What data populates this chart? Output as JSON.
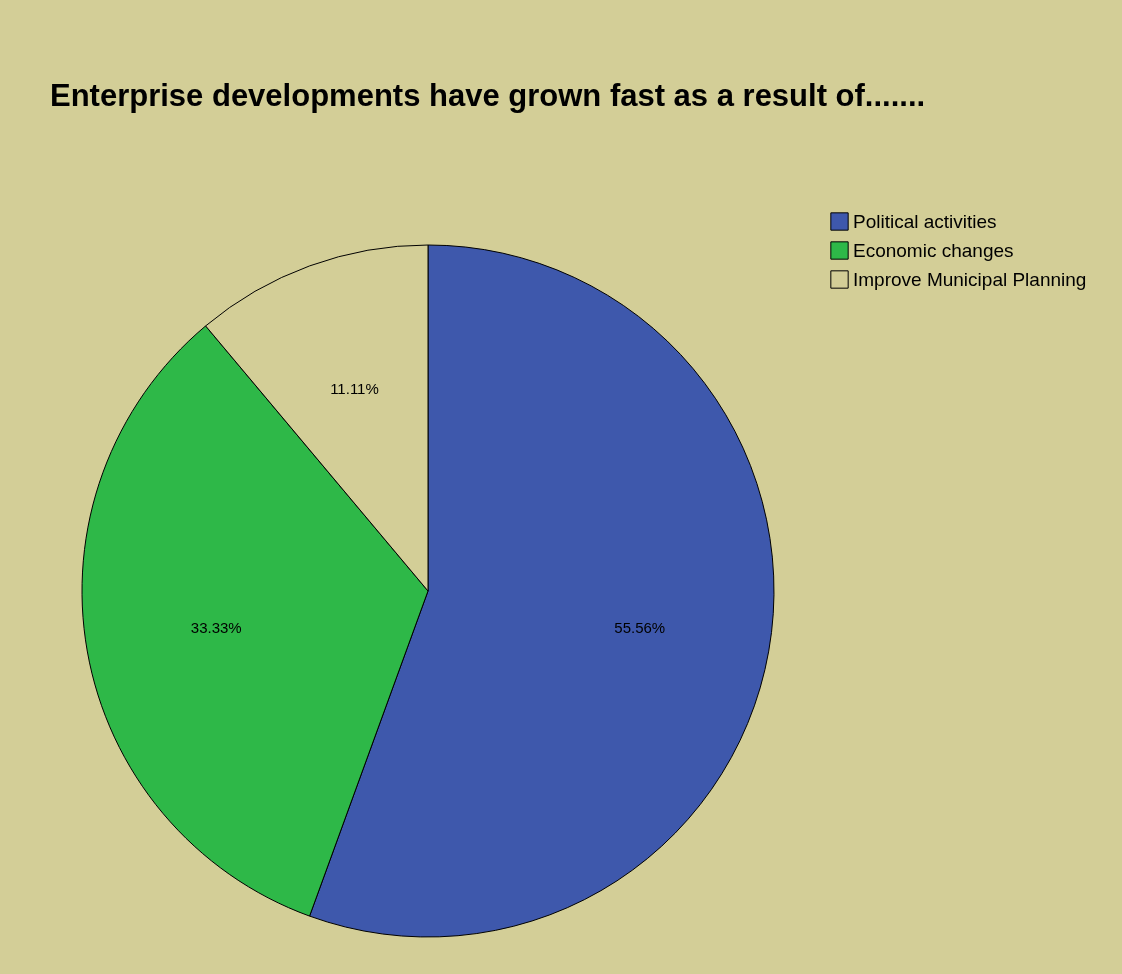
{
  "chart_data": {
    "type": "pie",
    "title": "Enterprise developments have grown fast as a result of.......",
    "categories": [
      "Political activities",
      "Economic changes",
      "Improve Municipal Planning"
    ],
    "values": [
      55.56,
      33.33,
      11.11
    ],
    "colors": [
      "#3e58ac",
      "#2eb848",
      "#d3ce97"
    ],
    "value_labels": [
      "55.56%",
      "33.33%",
      "11.11%"
    ],
    "legend": "top right"
  }
}
